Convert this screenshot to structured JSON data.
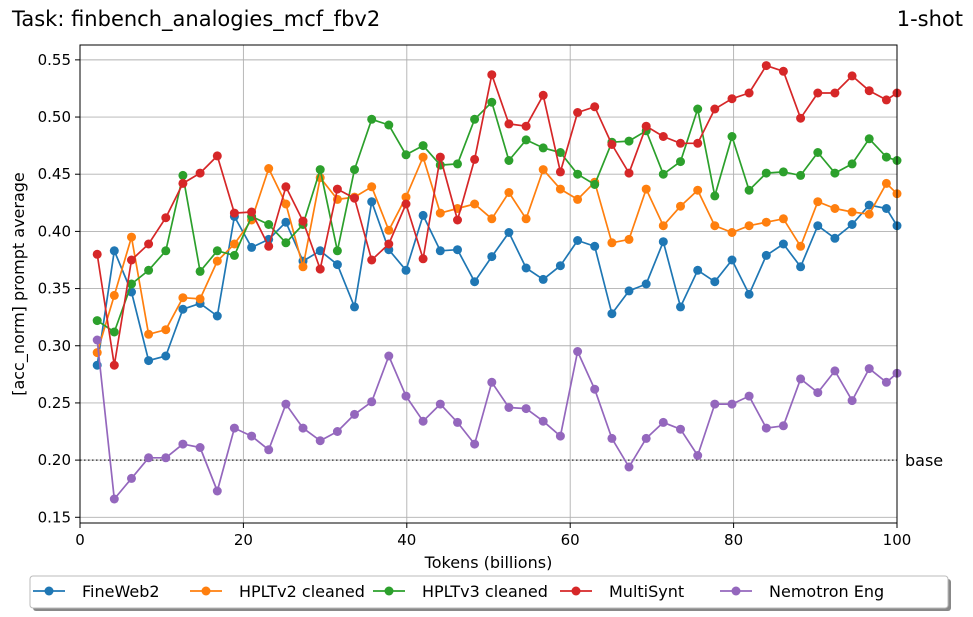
{
  "title_left": "Task: finbench_analogies_mcf_fbv2",
  "title_right": "1-shot",
  "chart_data": {
    "type": "line",
    "title": "Task: finbench_analogies_mcf_fbv2",
    "subtitle": "1-shot",
    "xlabel": "Tokens (billions)",
    "ylabel": "[acc_norm] prompt average",
    "xlim": [
      0,
      100
    ],
    "ylim": [
      0.145,
      0.563
    ],
    "xticks": [
      0,
      20,
      40,
      60,
      80,
      100
    ],
    "yticks": [
      0.15,
      0.2,
      0.25,
      0.3,
      0.35,
      0.4,
      0.45,
      0.5,
      0.55
    ],
    "grid": true,
    "legend_position": "bottom-center",
    "baseline": {
      "value": 0.2,
      "label": "base",
      "style": "dotted"
    },
    "x": [
      2.1,
      4.2,
      6.3,
      8.4,
      10.5,
      12.6,
      14.7,
      16.8,
      18.9,
      21.0,
      23.1,
      25.2,
      27.3,
      29.4,
      31.5,
      33.6,
      35.7,
      37.8,
      39.9,
      42.0,
      44.1,
      46.2,
      48.3,
      50.4,
      52.5,
      54.6,
      56.7,
      58.8,
      60.9,
      63.0,
      65.1,
      67.2,
      69.3,
      71.4,
      73.5,
      75.6,
      77.7,
      79.8,
      81.9,
      84.0,
      86.1,
      88.2,
      90.3,
      92.4,
      94.5,
      96.6,
      98.7,
      100.0
    ],
    "series": [
      {
        "name": "FineWeb2",
        "color": "#1f77b4",
        "values": [
          0.283,
          0.383,
          0.347,
          0.287,
          0.291,
          0.332,
          0.337,
          0.326,
          0.413,
          0.386,
          0.393,
          0.408,
          0.374,
          0.383,
          0.371,
          0.334,
          0.426,
          0.384,
          0.366,
          0.414,
          0.383,
          0.384,
          0.356,
          0.378,
          0.399,
          0.368,
          0.358,
          0.37,
          0.392,
          0.387,
          0.328,
          0.348,
          0.354,
          0.391,
          0.334,
          0.366,
          0.356,
          0.375,
          0.345,
          0.379,
          0.389,
          0.369,
          0.405,
          0.394,
          0.406,
          0.423,
          0.42,
          0.405
        ]
      },
      {
        "name": "HPLTv2 cleaned",
        "color": "#ff7f0e",
        "values": [
          0.294,
          0.344,
          0.395,
          0.31,
          0.314,
          0.342,
          0.341,
          0.374,
          0.389,
          0.41,
          0.455,
          0.424,
          0.369,
          0.447,
          0.428,
          0.43,
          0.439,
          0.401,
          0.43,
          0.465,
          0.416,
          0.42,
          0.424,
          0.411,
          0.434,
          0.411,
          0.454,
          0.437,
          0.428,
          0.443,
          0.39,
          0.393,
          0.437,
          0.405,
          0.422,
          0.436,
          0.405,
          0.399,
          0.405,
          0.408,
          0.411,
          0.387,
          0.426,
          0.42,
          0.417,
          0.415,
          0.442,
          0.433
        ]
      },
      {
        "name": "HPLTv3 cleaned",
        "color": "#2ca02c",
        "values": [
          0.322,
          0.312,
          0.354,
          0.366,
          0.383,
          0.449,
          0.365,
          0.383,
          0.379,
          0.413,
          0.406,
          0.39,
          0.406,
          0.454,
          0.383,
          0.454,
          0.498,
          0.493,
          0.467,
          0.475,
          0.458,
          0.459,
          0.498,
          0.513,
          0.462,
          0.48,
          0.473,
          0.469,
          0.45,
          0.441,
          0.478,
          0.479,
          0.488,
          0.45,
          0.461,
          0.507,
          0.431,
          0.483,
          0.436,
          0.451,
          0.452,
          0.449,
          0.469,
          0.451,
          0.459,
          0.481,
          0.465,
          0.462
        ]
      },
      {
        "name": "MultiSynt",
        "color": "#d62728",
        "values": [
          0.38,
          0.283,
          0.375,
          0.389,
          0.412,
          0.442,
          0.451,
          0.466,
          0.416,
          0.417,
          0.387,
          0.439,
          0.409,
          0.367,
          0.437,
          0.429,
          0.375,
          0.389,
          0.424,
          0.376,
          0.465,
          0.41,
          0.463,
          0.537,
          0.494,
          0.492,
          0.519,
          0.452,
          0.504,
          0.509,
          0.476,
          0.451,
          0.492,
          0.483,
          0.477,
          0.477,
          0.507,
          0.516,
          0.521,
          0.545,
          0.54,
          0.499,
          0.521,
          0.521,
          0.536,
          0.523,
          0.515,
          0.521
        ]
      },
      {
        "name": "Nemotron Eng",
        "color": "#9467bd",
        "values": [
          0.305,
          0.166,
          0.184,
          0.202,
          0.202,
          0.214,
          0.211,
          0.173,
          0.228,
          0.221,
          0.209,
          0.249,
          0.228,
          0.217,
          0.225,
          0.24,
          0.251,
          0.291,
          0.256,
          0.234,
          0.249,
          0.233,
          0.214,
          0.268,
          0.246,
          0.245,
          0.234,
          0.221,
          0.295,
          0.262,
          0.219,
          0.194,
          0.219,
          0.233,
          0.227,
          0.204,
          0.249,
          0.249,
          0.256,
          0.228,
          0.23,
          0.271,
          0.259,
          0.278,
          0.252,
          0.28,
          0.268,
          0.276
        ]
      }
    ]
  }
}
